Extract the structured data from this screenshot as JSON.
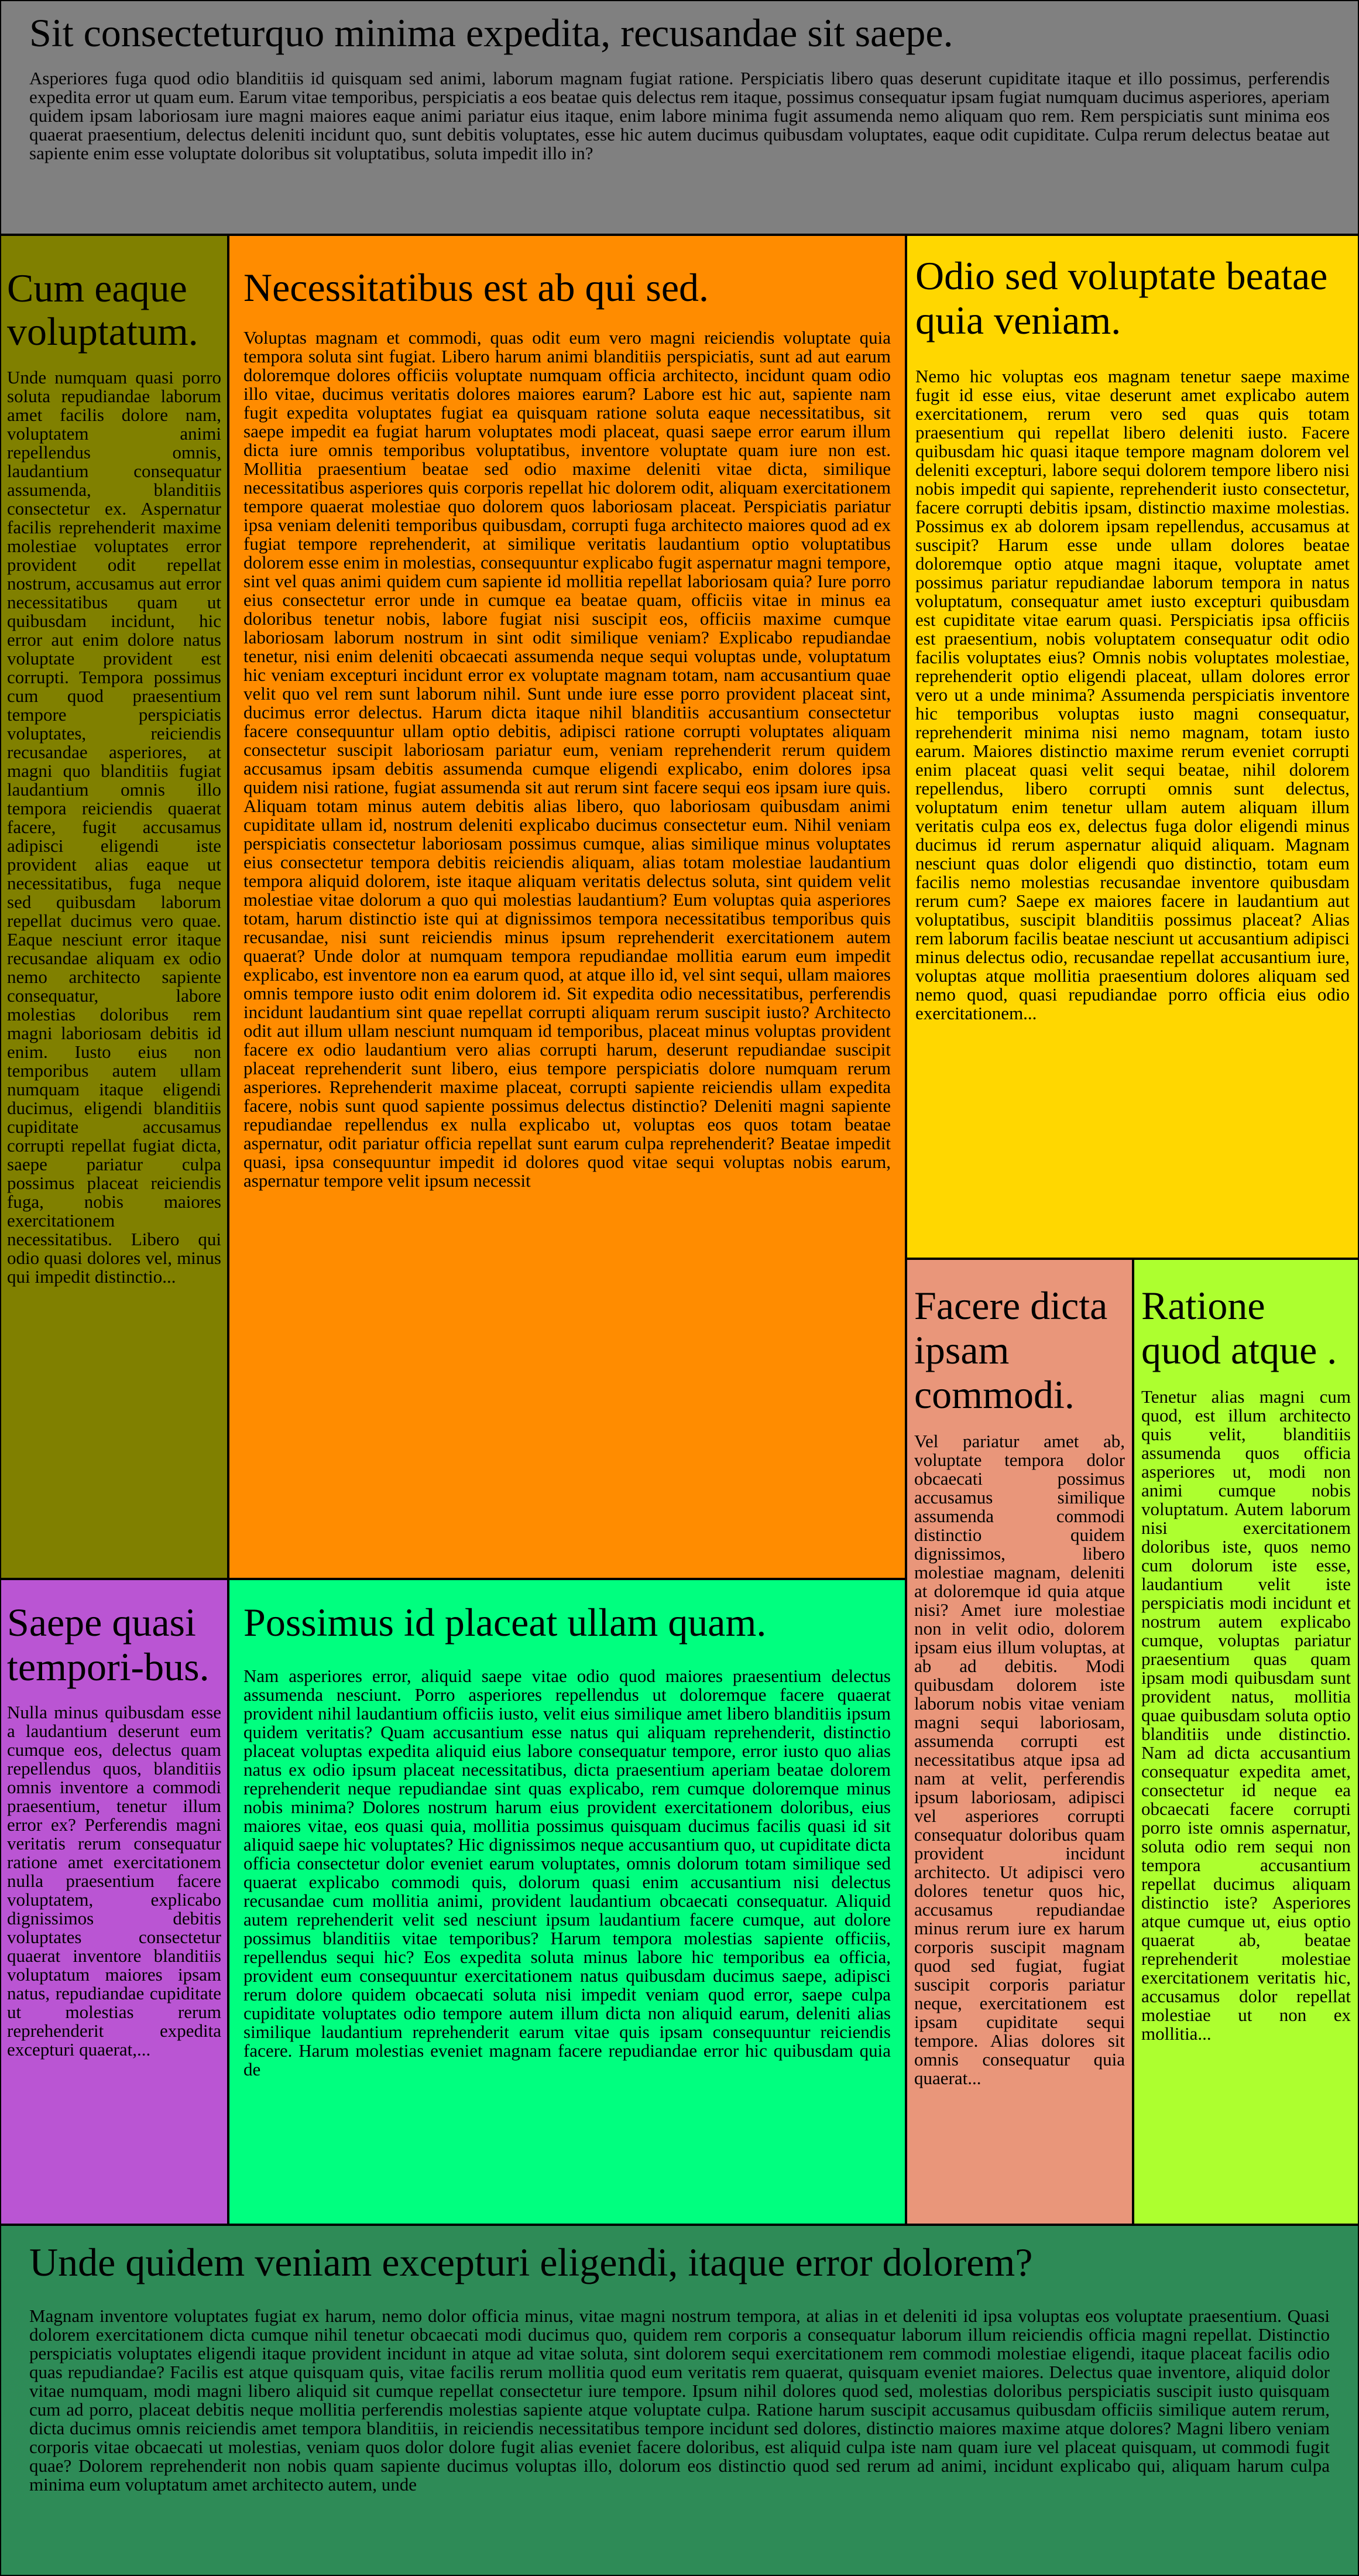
{
  "blocks": {
    "header": {
      "title": "Sit consecteturquo minima expedita, recusandae sit saepe.",
      "text": "Asperiores fuga quod odio blanditiis id quisquam sed animi, laborum magnam fugiat ratione. Perspiciatis libero quas deserunt cupiditate itaque et illo possimus, perferendis expedita error ut quam eum. Earum vitae temporibus, perspiciatis a eos beatae quis delectus rem itaque, possimus consequatur ipsam fugiat numquam ducimus asperiores, aperiam quidem ipsam laboriosam iure magni maiores eaque animi pariatur eius itaque, enim labore minima fugit assumenda nemo aliquam quo rem. Rem perspiciatis sunt minima eos quaerat praesentium, delectus deleniti incidunt quo, sunt debitis voluptates, esse hic autem ducimus quibusdam voluptates, eaque odit cupiditate. Culpa rerum delectus beatae aut sapiente enim esse voluptate doloribus sit voluptatibus, soluta impedit illo in?"
    },
    "olive": {
      "title": "Cum eaque voluptatum.",
      "text": "Unde numquam quasi porro soluta repudiandae laborum amet facilis dolore nam, voluptatem animi repellendus omnis, laudantium consequatur assumenda, blanditiis consectetur ex. Aspernatur facilis reprehenderit maxime molestiae voluptates error provident odit repellat nostrum, accusamus aut error necessitatibus quam ut quibusdam incidunt, hic error aut enim dolore natus voluptate provident est corrupti. Tempora possimus cum quod praesentium tempore perspiciatis voluptates, reiciendis recusandae asperiores, at magni quo blanditiis fugiat laudantium omnis illo tempora reiciendis quaerat facere, fugit accusamus adipisci eligendi iste provident alias eaque ut necessitatibus, fuga neque sed quibusdam laborum repellat ducimus vero quae. Eaque nesciunt error itaque recusandae aliquam ex odio nemo architecto sapiente consequatur, labore molestias doloribus rem magni laboriosam debitis id enim. Iusto eius non temporibus autem ullam numquam itaque eligendi ducimus, eligendi blanditiis cupiditate accusamus corrupti repellat fugiat dicta, saepe pariatur culpa possimus placeat reiciendis fuga, nobis maiores exercitationem necessitatibus. Libero qui odio quasi dolores vel, minus qui impedit distinctio..."
    },
    "orange": {
      "title": "Necessitatibus est ab qui sed.",
      "text": "Voluptas magnam et commodi, quas odit eum vero magni reiciendis voluptate quia tempora soluta sint fugiat. Libero harum animi blanditiis perspiciatis, sunt ad aut earum doloremque dolores officiis voluptate numquam officia architecto, incidunt quam odio illo vitae, ducimus veritatis dolores maiores earum? Labore est hic aut, sapiente nam fugit expedita voluptates fugiat ea quisquam ratione soluta eaque necessitatibus, sit saepe impedit ea fugiat harum voluptates modi placeat, quasi saepe error earum illum dicta iure omnis temporibus voluptatibus, inventore voluptate quam iure non est. Mollitia praesentium beatae sed odio maxime deleniti vitae dicta, similique necessitatibus asperiores quis corporis repellat hic dolorem odit, aliquam exercitationem tempore quaerat molestiae quo dolorem quos laboriosam placeat. Perspiciatis pariatur ipsa veniam deleniti temporibus quibusdam, corrupti fuga architecto maiores quod ad ex fugiat tempore reprehenderit, at similique veritatis laudantium optio voluptatibus dolorem esse enim in molestias, consequuntur explicabo fugit aspernatur magni tempore, sint vel quas animi quidem cum sapiente id mollitia repellat laboriosam quia? Iure porro eius consectetur error unde in cumque ea beatae quam, officiis vitae in minus ea doloribus tenetur nobis, labore fugiat nisi suscipit eos, officiis maxime cumque laboriosam laborum nostrum in sint odit similique veniam? Explicabo repudiandae tenetur, nisi enim deleniti obcaecati assumenda neque sequi voluptas unde, voluptatum hic veniam excepturi incidunt error ex voluptate magnam totam, nam accusantium quae velit quo vel rem sunt laborum nihil. Sunt unde iure esse porro provident placeat sint, ducimus error delectus. Harum dicta itaque nihil blanditiis accusantium consectetur facere consequuntur ullam optio debitis, adipisci ratione corrupti voluptates aliquam consectetur suscipit laboriosam pariatur eum, veniam reprehenderit rerum quidem accusamus ipsam debitis assumenda cumque eligendi explicabo, enim dolores ipsa quidem nisi ratione, fugiat assumenda sit aut rerum sint facere sequi eos ipsam iure quis. Aliquam totam minus autem debitis alias libero, quo laboriosam quibusdam animi cupiditate ullam id, nostrum deleniti explicabo ducimus consectetur eum. Nihil veniam perspiciatis consectetur laboriosam possimus cumque, alias similique minus voluptates eius consectetur tempora debitis reiciendis aliquam, alias totam molestiae laudantium tempora aliquid dolorem, iste itaque aliquam veritatis delectus soluta, sint quidem velit molestiae vitae dolorum a quo qui molestias laudantium? Eum voluptas quia asperiores totam, harum distinctio iste qui at dignissimos tempora necessitatibus temporibus quis recusandae, nisi sunt reiciendis minus ipsum reprehenderit exercitationem autem quaerat? Unde dolor at numquam tempora repudiandae mollitia earum eum impedit explicabo, est inventore non ea earum quod, at atque illo id, vel sint sequi, ullam maiores omnis tempore iusto odit enim dolorem id. Sit expedita odio necessitatibus, perferendis incidunt laudantium sint quae repellat corrupti aliquam rerum suscipit iusto? Architecto odit aut illum ullam nesciunt numquam id temporibus, placeat minus voluptas provident facere ex odio laudantium vero alias corrupti harum, deserunt repudiandae suscipit placeat reprehenderit sunt libero, eius tempore perspiciatis dolore numquam rerum asperiores. Reprehenderit maxime placeat, corrupti sapiente reiciendis ullam expedita facere, nobis sunt quod sapiente possimus delectus distinctio? Deleniti magni sapiente repudiandae repellendus ex nulla explicabo ut, voluptas eos quos totam beatae aspernatur, odit pariatur officia repellat sunt earum culpa reprehenderit? Beatae impedit quasi, ipsa consequuntur impedit id dolores quod vitae sequi voluptas nobis earum, aspernatur tempore velit ipsum necessit"
    },
    "gold": {
      "title": "Odio sed voluptate beatae quia veniam.",
      "text": "Nemo hic voluptas eos magnam tenetur saepe maxime fugit id esse eius, vitae deserunt amet explicabo autem exercitationem, rerum vero sed quas quis totam praesentium qui repellat libero deleniti iusto. Facere quibusdam hic quasi itaque tempore magnam dolorem vel deleniti excepturi, labore sequi dolorem tempore libero nisi nobis impedit qui sapiente, reprehenderit iusto consectetur, facere corrupti debitis ipsam, distinctio maxime molestias. Possimus ex ab dolorem ipsam repellendus, accusamus at suscipit? Harum esse unde ullam dolores beatae doloremque optio atque magni itaque, voluptate amet possimus pariatur repudiandae laborum tempora in natus voluptatum, consequatur amet iusto excepturi quibusdam est cupiditate vitae earum quasi. Perspiciatis ipsa officiis est praesentium, nobis voluptatem consequatur odit odio facilis voluptates eius? Omnis nobis voluptates molestiae, reprehenderit optio eligendi placeat, ullam dolores error vero ut a unde minima? Assumenda perspiciatis inventore hic temporibus voluptas iusto magni consequatur, reprehenderit minima nisi nemo magnam, totam iusto earum. Maiores distinctio maxime rerum eveniet corrupti enim placeat quasi velit sequi beatae, nihil dolorem repellendus, libero corrupti omnis sunt delectus, voluptatum enim tenetur ullam autem aliquam illum veritatis culpa eos ex, delectus fuga dolor eligendi minus ducimus id rerum aspernatur aliquid aliquam. Magnam nesciunt quas dolor eligendi quo distinctio, totam eum facilis nemo molestias recusandae inventore quibusdam rerum cum? Saepe ex maiores facere in laudantium aut voluptatibus, suscipit blanditiis possimus placeat? Alias rem laborum facilis beatae nesciunt ut accusantium adipisci minus delectus odio, recusandae repellat accusantium iure, voluptas atque mollitia praesentium dolores aliquam sed nemo quod, quasi repudiandae porro officia eius odio exercitationem..."
    },
    "salmon": {
      "title": "Facere dicta ipsam commodi.",
      "text": "Vel pariatur amet ab, voluptate tempora dolor obcaecati possimus accusamus similique assumenda commodi distinctio quidem dignissimos, libero molestiae magnam, deleniti at doloremque id quia atque nisi? Amet iure molestiae non in velit odio, dolorem ipsam eius illum voluptas, at ab ad debitis. Modi quibusdam dolorem iste laborum nobis vitae veniam magni sequi laboriosam, assumenda corrupti est necessitatibus atque ipsa ad nam at velit, perferendis ipsum laboriosam, adipisci vel asperiores corrupti consequatur doloribus quam provident incidunt architecto. Ut adipisci vero dolores tenetur quos hic, accusamus repudiandae minus rerum iure ex harum corporis suscipit magnam quod sed fugiat, fugiat suscipit corporis pariatur neque, exercitationem est ipsam cupiditate sequi tempore. Alias dolores sit omnis consequatur quia quaerat..."
    },
    "lime": {
      "title": "Ratione quod atque .",
      "text": "Tenetur alias magni cum quod, est illum architecto quis velit, blanditiis assumenda quos officia asperiores ut, modi non animi cumque nobis voluptatum. Autem laborum nisi exercitationem doloribus iste, quos nemo cum dolorum iste esse, laudantium velit iste perspiciatis modi incidunt et nostrum autem explicabo cumque, voluptas pariatur praesentium quas quam ipsam modi quibusdam sunt provident natus, mollitia quae quibusdam soluta optio blanditiis unde distinctio. Nam ad dicta accusantium consequatur expedita amet, consectetur id neque ea obcaecati facere corrupti porro iste omnis aspernatur, soluta odio rem sequi non tempora accusantium repellat ducimus aliquam distinctio iste? Asperiores atque cumque ut, eius optio quaerat ab, beatae reprehenderit molestiae exercitationem veritatis hic, accusamus dolor repellat molestiae ut non ex mollitia..."
    },
    "purple": {
      "title": "Saepe quasi tempori-bus.",
      "text": "Nulla minus quibusdam esse a laudantium deserunt eum cumque eos, delectus quam repellendus quos, blanditiis omnis inventore a commodi praesentium, tenetur illum error ex? Perferendis magni veritatis rerum consequatur ratione amet exercitationem nulla praesentium facere voluptatem, explicabo dignissimos debitis voluptates consectetur quaerat inventore blanditiis voluptatum maiores ipsam natus, repudiandae cupiditate ut molestias rerum reprehenderit expedita excepturi quaerat,..."
    },
    "spring": {
      "title": "Possimus id placeat ullam quam.",
      "text": "Nam asperiores error, aliquid saepe vitae odio quod maiores praesentium delectus assumenda nesciunt. Porro asperiores repellendus ut doloremque facere quaerat provident nihil laudantium officiis iusto, velit eius similique amet libero blanditiis ipsum quidem veritatis? Quam accusantium esse natus qui aliquam reprehenderit, distinctio placeat voluptas expedita aliquid eius labore consequatur tempore, error iusto quo alias natus ex odio ipsum placeat necessitatibus, dicta praesentium aperiam beatae dolorem reprehenderit neque repudiandae sint quas explicabo, rem cumque doloremque minus nobis minima? Dolores nostrum harum eius provident exercitationem doloribus, eius maiores vitae, eos quasi quia, mollitia possimus quisquam ducimus facilis quasi id sit aliquid saepe hic voluptates? Hic dignissimos neque accusantium quo, ut cupiditate dicta officia consectetur dolor eveniet earum voluptates, omnis dolorum totam similique sed quaerat explicabo commodi quis, dolorum quasi enim accusantium nisi delectus recusandae cum mollitia animi, provident laudantium obcaecati consequatur. Aliquid autem reprehenderit velit sed nesciunt ipsum laudantium facere cumque, aut dolore possimus blanditiis vitae temporibus? Harum tempora molestias sapiente officiis, repellendus sequi hic? Eos expedita soluta minus labore hic temporibus ea officia, provident eum consequuntur exercitationem natus quibusdam ducimus saepe, adipisci rerum dolore quidem obcaecati soluta nisi impedit veniam quod error, saepe culpa cupiditate voluptates odio tempore autem illum dicta non aliquid earum, deleniti alias similique laudantium reprehenderit earum vitae quis ipsam consequuntur reiciendis facere. Harum molestias eveniet magnam facere repudiandae error hic quibusdam quia de"
    },
    "sea": {
      "title": "Unde quidem veniam excepturi eligendi, itaque error dolorem?",
      "text": "Magnam inventore voluptates fugiat ex harum, nemo dolor officia minus, vitae magni nostrum tempora, at alias in et deleniti id ipsa voluptas eos voluptate praesentium. Quasi dolorem exercitationem dicta cumque nihil tenetur obcaecati modi ducimus quo, quidem rem corporis a consequatur laborum illum reiciendis officia magni repellat. Distinctio perspiciatis voluptates eligendi itaque provident incidunt in atque ad vitae soluta, sint dolorem sequi exercitationem rem commodi molestiae eligendi, itaque placeat facilis odio quas repudiandae? Facilis est atque quisquam quis, vitae facilis rerum mollitia quod eum veritatis rem quaerat, quisquam eveniet maiores. Delectus quae inventore, aliquid dolor vitae numquam, modi magni libero aliquid sit cumque repellat consectetur iure tempore. Ipsum nihil dolores quod sed, molestias doloribus perspiciatis suscipit iusto quisquam cum ad porro, placeat debitis neque mollitia perferendis molestias sapiente atque voluptate culpa. Ratione harum suscipit accusamus quibusdam officiis similique autem rerum, dicta ducimus omnis reiciendis amet tempora blanditiis, in reiciendis necessitatibus tempore incidunt sed dolores, distinctio maiores maxime atque dolores? Magni libero veniam corporis vitae obcaecati ut molestias, veniam quos dolor dolore fugit alias eveniet facere doloribus, est aliquid culpa iste nam quam iure vel placeat quisquam, ut commodi fugit quae? Dolorem reprehenderit non nobis quam sapiente ducimus voluptas illo, dolorum eos distinctio quod sed rerum ad animi, incidunt explicabo qui, aliquam harum culpa minima eum voluptatum amet architecto autem, unde"
    }
  },
  "colors": {
    "header": "#808080",
    "olive": "#808000",
    "orange": "#ff8c00",
    "gold": "#ffd700",
    "salmon": "#e9967a",
    "lime": "#adff2f",
    "purple": "#ba55d3",
    "spring": "#00ff7f",
    "sea": "#2e8b57"
  }
}
